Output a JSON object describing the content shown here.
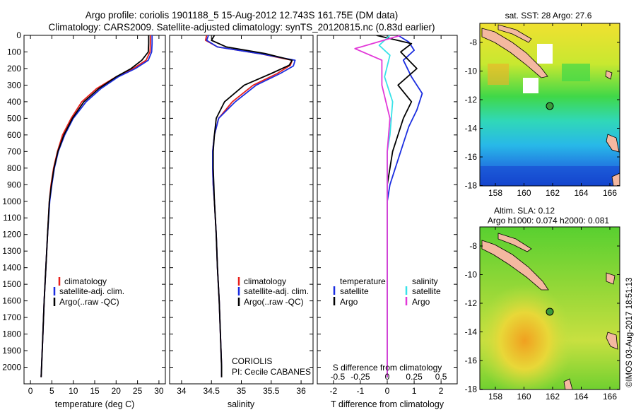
{
  "header": {
    "line1": "Argo profile: coriolis 1901188_5 15-Aug-2012 12.743S 161.75E (DM data)",
    "line2": "Climatology: CARS2009. Satellite-adjusted climatology: synTS_20120815.nc (0.83d earlier)"
  },
  "side_stamp": "©IMOS 03-Aug-2017 18:51:13",
  "colors": {
    "climatology": "#e8201c",
    "satellite": "#1a2de0",
    "argo": "#000000",
    "sal_satellite": "#38e2e8",
    "sal_argo": "#e238d8",
    "station_marker": "#3a9a3a"
  },
  "chart_data": [
    {
      "type": "line",
      "id": "temperature",
      "xlabel": "temperature (deg C)",
      "ylabel": "",
      "xlim": [
        -1.5,
        31.5
      ],
      "ylim": [
        2100,
        0
      ],
      "xticks": [
        0,
        5,
        10,
        15,
        20,
        25,
        30
      ],
      "yticks": [
        0,
        100,
        200,
        300,
        400,
        500,
        600,
        700,
        800,
        900,
        1000,
        1100,
        1200,
        1300,
        1400,
        1500,
        1600,
        1700,
        1800,
        1900,
        2000
      ],
      "legend": {
        "position": "lower-center",
        "entries": [
          "climatology",
          "satellite-adj. clim.",
          "Argo(..raw -QC)"
        ]
      },
      "series": [
        {
          "name": "climatology",
          "color": "#e8201c",
          "points": [
            [
              28,
              0
            ],
            [
              28,
              50
            ],
            [
              27.9,
              100
            ],
            [
              27,
              150
            ],
            [
              24,
              200
            ],
            [
              20,
              250
            ],
            [
              15.5,
              320
            ],
            [
              12,
              400
            ],
            [
              9.5,
              500
            ],
            [
              7.5,
              600
            ],
            [
              6.3,
              700
            ],
            [
              5.4,
              800
            ],
            [
              4.8,
              900
            ],
            [
              4.4,
              1000
            ],
            [
              4,
              1200
            ],
            [
              3.6,
              1400
            ],
            [
              3.2,
              1600
            ],
            [
              2.9,
              1800
            ],
            [
              2.6,
              2000
            ],
            [
              2.5,
              2060
            ]
          ]
        },
        {
          "name": "satellite-adj. clim.",
          "color": "#1a2de0",
          "points": [
            [
              28.4,
              0
            ],
            [
              28.4,
              50
            ],
            [
              28.3,
              100
            ],
            [
              27.5,
              150
            ],
            [
              24.5,
              200
            ],
            [
              20.5,
              250
            ],
            [
              16.5,
              320
            ],
            [
              13,
              400
            ],
            [
              10,
              500
            ],
            [
              8,
              600
            ],
            [
              6.5,
              700
            ],
            [
              5.6,
              800
            ],
            [
              5,
              900
            ],
            [
              4.5,
              1000
            ],
            [
              4,
              1200
            ],
            [
              3.6,
              1400
            ],
            [
              3.2,
              1600
            ],
            [
              2.9,
              1800
            ],
            [
              2.6,
              2000
            ],
            [
              2.5,
              2060
            ]
          ]
        },
        {
          "name": "Argo(..raw -QC)",
          "color": "#000000",
          "points": [
            [
              27.6,
              0
            ],
            [
              27.6,
              50
            ],
            [
              27.5,
              100
            ],
            [
              26,
              150
            ],
            [
              23.5,
              200
            ],
            [
              20,
              250
            ],
            [
              16,
              320
            ],
            [
              12.5,
              400
            ],
            [
              9.8,
              500
            ],
            [
              7.8,
              600
            ],
            [
              6.4,
              700
            ],
            [
              5.5,
              800
            ],
            [
              4.9,
              900
            ],
            [
              4.4,
              1000
            ],
            [
              4,
              1200
            ],
            [
              3.6,
              1400
            ],
            [
              3.2,
              1600
            ],
            [
              2.9,
              1800
            ],
            [
              2.6,
              2000
            ],
            [
              2.5,
              2060
            ]
          ]
        }
      ]
    },
    {
      "type": "line",
      "id": "salinity",
      "xlabel": "salinity",
      "xlim": [
        33.8,
        36.2
      ],
      "ylim": [
        2100,
        0
      ],
      "xticks": [
        34,
        34.5,
        35,
        35.5,
        36
      ],
      "xtick_labels": [
        "34",
        "34.5",
        "35",
        "35.5",
        "36"
      ],
      "legend": {
        "position": "lower-center",
        "entries": [
          "climatology",
          "satellite-adj. clim.",
          "Argo(..raw -QC)"
        ]
      },
      "annotation": [
        "CORIOLIS",
        "PI: Cecile CABANES"
      ],
      "series": [
        {
          "name": "climatology",
          "color": "#e8201c",
          "points": [
            [
              34.42,
              0
            ],
            [
              34.4,
              30
            ],
            [
              34.6,
              70
            ],
            [
              35.3,
              110
            ],
            [
              35.85,
              150
            ],
            [
              35.82,
              180
            ],
            [
              35.6,
              230
            ],
            [
              35.2,
              300
            ],
            [
              34.85,
              400
            ],
            [
              34.62,
              500
            ],
            [
              34.55,
              600
            ],
            [
              34.52,
              700
            ],
            [
              34.52,
              800
            ],
            [
              34.53,
              900
            ],
            [
              34.55,
              1000
            ],
            [
              34.58,
              1200
            ],
            [
              34.6,
              1400
            ],
            [
              34.63,
              1600
            ],
            [
              34.65,
              1800
            ],
            [
              34.67,
              2000
            ],
            [
              34.67,
              2060
            ]
          ]
        },
        {
          "name": "satellite-adj. clim.",
          "color": "#1a2de0",
          "points": [
            [
              34.45,
              0
            ],
            [
              34.42,
              30
            ],
            [
              34.6,
              70
            ],
            [
              35.3,
              110
            ],
            [
              35.9,
              150
            ],
            [
              35.87,
              185
            ],
            [
              35.65,
              230
            ],
            [
              35.25,
              300
            ],
            [
              34.9,
              400
            ],
            [
              34.62,
              500
            ],
            [
              34.55,
              600
            ],
            [
              34.52,
              700
            ],
            [
              34.52,
              800
            ],
            [
              34.53,
              900
            ],
            [
              34.55,
              1000
            ],
            [
              34.58,
              1200
            ],
            [
              34.6,
              1400
            ],
            [
              34.63,
              1600
            ],
            [
              34.65,
              1800
            ],
            [
              34.67,
              2000
            ],
            [
              34.67,
              2060
            ]
          ]
        },
        {
          "name": "Argo(..raw -QC)",
          "color": "#000000",
          "points": [
            [
              34.55,
              0
            ],
            [
              34.5,
              30
            ],
            [
              34.75,
              70
            ],
            [
              35.4,
              110
            ],
            [
              35.85,
              150
            ],
            [
              35.8,
              180
            ],
            [
              35.5,
              230
            ],
            [
              35.05,
              300
            ],
            [
              34.72,
              400
            ],
            [
              34.58,
              500
            ],
            [
              34.55,
              600
            ],
            [
              34.53,
              700
            ],
            [
              34.53,
              800
            ],
            [
              34.54,
              900
            ],
            [
              34.55,
              1000
            ],
            [
              34.58,
              1200
            ],
            [
              34.6,
              1400
            ],
            [
              34.63,
              1600
            ],
            [
              34.65,
              1800
            ],
            [
              34.67,
              2000
            ],
            [
              34.67,
              2060
            ]
          ]
        }
      ]
    },
    {
      "type": "line",
      "id": "differences",
      "xlabel": "T difference from climatology",
      "xlim": [
        -2.6,
        2.6
      ],
      "ylim": [
        2100,
        0
      ],
      "xticks": [
        -2,
        -1,
        0,
        1,
        2
      ],
      "top_axis_label": "S difference from climatology",
      "top_ticks": [
        "-0.5",
        "-0.25",
        "0",
        "0.25",
        "0.5"
      ],
      "top_tick_values": [
        -2,
        -1,
        0,
        1,
        2
      ],
      "legend": {
        "groups": [
          {
            "title": "temperature",
            "entries": [
              "satellite",
              "Argo"
            ]
          },
          {
            "title": "salinity",
            "entries": [
              "satellite",
              "Argo"
            ]
          }
        ]
      },
      "series": [
        {
          "name": "temperature satellite",
          "color": "#1a2de0",
          "points": [
            [
              0.4,
              0
            ],
            [
              0.8,
              40
            ],
            [
              1,
              90
            ],
            [
              0.6,
              150
            ],
            [
              0.9,
              250
            ],
            [
              1.3,
              350
            ],
            [
              1.1,
              450
            ],
            [
              0.8,
              550
            ],
            [
              0.6,
              650
            ],
            [
              0.3,
              800
            ],
            [
              0.1,
              900
            ],
            [
              0,
              1000
            ],
            [
              0,
              1500
            ],
            [
              0,
              2060
            ]
          ]
        },
        {
          "name": "temperature Argo",
          "color": "#000000",
          "points": [
            [
              -0.4,
              0
            ],
            [
              0.9,
              50
            ],
            [
              0.5,
              100
            ],
            [
              1.1,
              200
            ],
            [
              0.4,
              300
            ],
            [
              0.9,
              400
            ],
            [
              0.6,
              500
            ],
            [
              0.4,
              600
            ],
            [
              0.2,
              700
            ],
            [
              0.1,
              800
            ],
            [
              0,
              900
            ],
            [
              0,
              1500
            ],
            [
              0,
              2060
            ]
          ]
        },
        {
          "name": "salinity satellite",
          "color": "#38e2e8",
          "points": [
            [
              0.1,
              0
            ],
            [
              -0.3,
              60
            ],
            [
              0.1,
              120
            ],
            [
              -0.1,
              250
            ],
            [
              0.2,
              400
            ],
            [
              0.1,
              600
            ],
            [
              0,
              700
            ],
            [
              0,
              2060
            ]
          ]
        },
        {
          "name": "salinity Argo",
          "color": "#e238d8",
          "points": [
            [
              0.5,
              0
            ],
            [
              -1.2,
              80
            ],
            [
              -0.2,
              150
            ],
            [
              -0.2,
              300
            ],
            [
              0.1,
              500
            ],
            [
              0,
              700
            ],
            [
              0,
              2060
            ]
          ]
        }
      ]
    }
  ],
  "maps": [
    {
      "id": "sst-map",
      "title": "sat. SST: 28 Argo: 27.6",
      "title_lines": [
        "sat. SST: 28 Argo: 27.6"
      ],
      "lon_ticks": [
        "158",
        "160",
        "162",
        "164",
        "166"
      ],
      "lat_ticks": [
        "-8",
        "-10",
        "-12",
        "-14",
        "-16",
        "-18"
      ]
    },
    {
      "id": "sla-map",
      "title_lines": [
        "Altim. SLA: 0.12",
        "Argo h1000: 0.074 h2000: 0.081"
      ],
      "lon_ticks": [
        "158",
        "160",
        "162",
        "164",
        "166"
      ],
      "lat_ticks": [
        "-8",
        "-10",
        "-12",
        "-14",
        "-16",
        "-18"
      ]
    }
  ]
}
